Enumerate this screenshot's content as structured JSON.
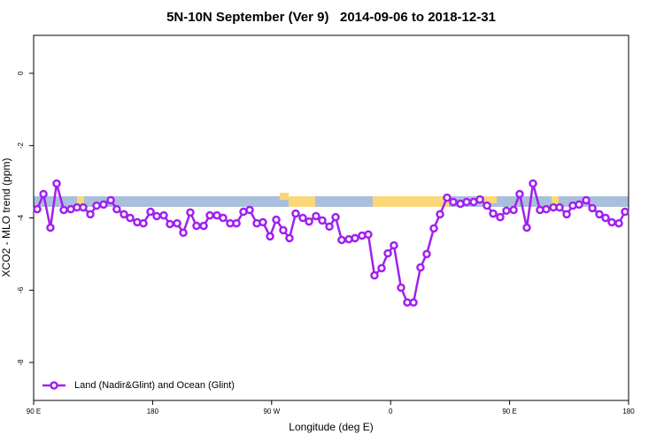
{
  "chart_data": {
    "type": "line",
    "title": "5N-10N September (Ver 9)   2014-09-06 to 2018-12-31",
    "x_label": "Longitude (deg E)",
    "y_label": "XCO2 - MLO trend (ppm)",
    "xlim": [
      90,
      540
    ],
    "xticks": [
      {
        "value": 90,
        "label": "90 E"
      },
      180,
      {
        "value": 270,
        "label": "90 W"
      },
      {
        "value": 360,
        "label": "0"
      },
      {
        "value": 450,
        "label": "90 E"
      },
      {
        "value": 540,
        "label": "180"
      }
    ],
    "ylim": [
      -9.05,
      1.05
    ],
    "yticks": [
      0,
      -2,
      -4,
      -6,
      -8
    ],
    "legend": "bottom left",
    "series": [
      {
        "name": "Land (Nadir&Glint) and Ocean (Glint)",
        "color": "#a020f0",
        "x": [
          92.7,
          97.4,
          102.7,
          107.4,
          112.8,
          118.1,
          122.8,
          127.5,
          132.9,
          137.6,
          142.9,
          148.3,
          152.9,
          158.3,
          163.0,
          168.3,
          173.0,
          178.4,
          183.1,
          188.4,
          193.1,
          198.5,
          203.2,
          208.5,
          213.2,
          218.6,
          223.3,
          228.6,
          233.3,
          238.7,
          243.4,
          248.7,
          253.4,
          258.8,
          263.4,
          268.8,
          273.5,
          278.8,
          283.5,
          288.2,
          293.6,
          298.3,
          303.6,
          308.3,
          313.7,
          318.4,
          323.0,
          328.4,
          333.1,
          338.4,
          343.1,
          347.8,
          353.2,
          357.9,
          362.5,
          367.9,
          372.6,
          377.3,
          382.6,
          387.3,
          392.7,
          397.4,
          402.7,
          407.4,
          412.8,
          417.5,
          422.8,
          427.5,
          432.9,
          437.6,
          442.9,
          447.6,
          453.0,
          457.6,
          463.0,
          467.7,
          473.0,
          477.7,
          483.1,
          487.8,
          493.2,
          497.8,
          502.5,
          507.9,
          512.6,
          517.9,
          522.6,
          527.3,
          532.6,
          537.3
        ],
        "values": [
          -3.76,
          -3.34,
          -4.27,
          -3.05,
          -3.78,
          -3.76,
          -3.71,
          -3.71,
          -3.9,
          -3.66,
          -3.63,
          -3.51,
          -3.76,
          -3.9,
          -4.0,
          -4.12,
          -4.15,
          -3.83,
          -3.95,
          -3.93,
          -4.17,
          -4.15,
          -4.41,
          -3.85,
          -4.22,
          -4.22,
          -3.93,
          -3.93,
          -4.0,
          -4.15,
          -4.15,
          -3.83,
          -3.78,
          -4.15,
          -4.12,
          -4.51,
          -4.05,
          -4.34,
          -4.56,
          -3.88,
          -4.0,
          -4.1,
          -3.95,
          -4.07,
          -4.24,
          -3.98,
          -4.61,
          -4.59,
          -4.56,
          -4.49,
          -4.46,
          -5.59,
          -5.39,
          -4.98,
          -4.76,
          -5.93,
          -6.34,
          -6.34,
          -5.37,
          -5.0,
          -4.29,
          -3.9,
          -3.44,
          -3.56,
          -3.61,
          -3.56,
          -3.56,
          -3.49,
          -3.66,
          -3.88,
          -3.98,
          -3.8,
          -3.78,
          -3.34,
          -4.27,
          -3.05,
          -3.78,
          -3.76,
          -3.71,
          -3.71,
          -3.9,
          -3.66,
          -3.63,
          -3.51,
          -3.73,
          -3.9,
          -4.0,
          -4.12,
          -4.15,
          -3.83
        ]
      }
    ]
  }
}
